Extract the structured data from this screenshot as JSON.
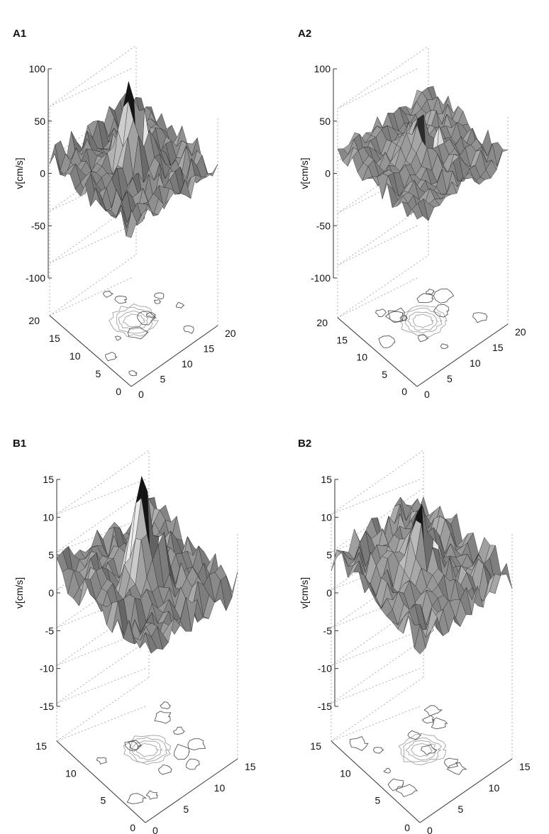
{
  "chart_data": [
    {
      "panel": "A1",
      "type": "surface3d",
      "zlabel": "v[cm/s]",
      "zlim": [
        -100,
        100
      ],
      "zticks": [
        "100",
        "50",
        "0",
        "-50",
        "-100"
      ],
      "xticks": [
        "0",
        "5",
        "10",
        "15",
        "20"
      ],
      "yticks": [
        "0",
        "5",
        "10",
        "15",
        "20"
      ],
      "grid_range": [
        0,
        20
      ],
      "peak": 90,
      "trough": -95,
      "noise_amp": 14,
      "base_level": -3,
      "contour_plot": true
    },
    {
      "panel": "A2",
      "type": "surface3d",
      "zlabel": "v[cm/s]",
      "zlim": [
        -100,
        100
      ],
      "zticks": [
        "100",
        "50",
        "0",
        "-50",
        "-100"
      ],
      "xticks": [
        "0",
        "5",
        "10",
        "15",
        "20"
      ],
      "yticks": [
        "0",
        "5",
        "10",
        "15",
        "20"
      ],
      "grid_range": [
        0,
        20
      ],
      "peak": 45,
      "trough": -60,
      "noise_amp": 11,
      "base_level": 8,
      "contour_plot": true
    },
    {
      "panel": "B1",
      "type": "surface3d",
      "zlabel": "v[cm/s]",
      "zlim": [
        -15,
        15
      ],
      "zticks": [
        "15",
        "10",
        "5",
        "0",
        "-5",
        "-10",
        "-15"
      ],
      "xticks": [
        "0",
        "5",
        "10",
        "15"
      ],
      "yticks": [
        "0",
        "5",
        "10",
        "15"
      ],
      "grid_range": [
        0,
        15
      ],
      "peak": 15,
      "trough": -13,
      "noise_amp": 2.3,
      "base_level": 0,
      "contour_plot": true
    },
    {
      "panel": "B2",
      "type": "surface3d",
      "zlabel": "v[cm/s]",
      "zlim": [
        -15,
        15
      ],
      "zticks": [
        "15",
        "10",
        "5",
        "0",
        "-5",
        "-10",
        "-15"
      ],
      "xticks": [
        "0",
        "5",
        "10",
        "15"
      ],
      "yticks": [
        "0",
        "5",
        "10",
        "15"
      ],
      "grid_range": [
        0,
        15
      ],
      "peak": 9,
      "trough": -12,
      "noise_amp": 2.2,
      "base_level": 1.5,
      "contour_plot": true
    }
  ]
}
